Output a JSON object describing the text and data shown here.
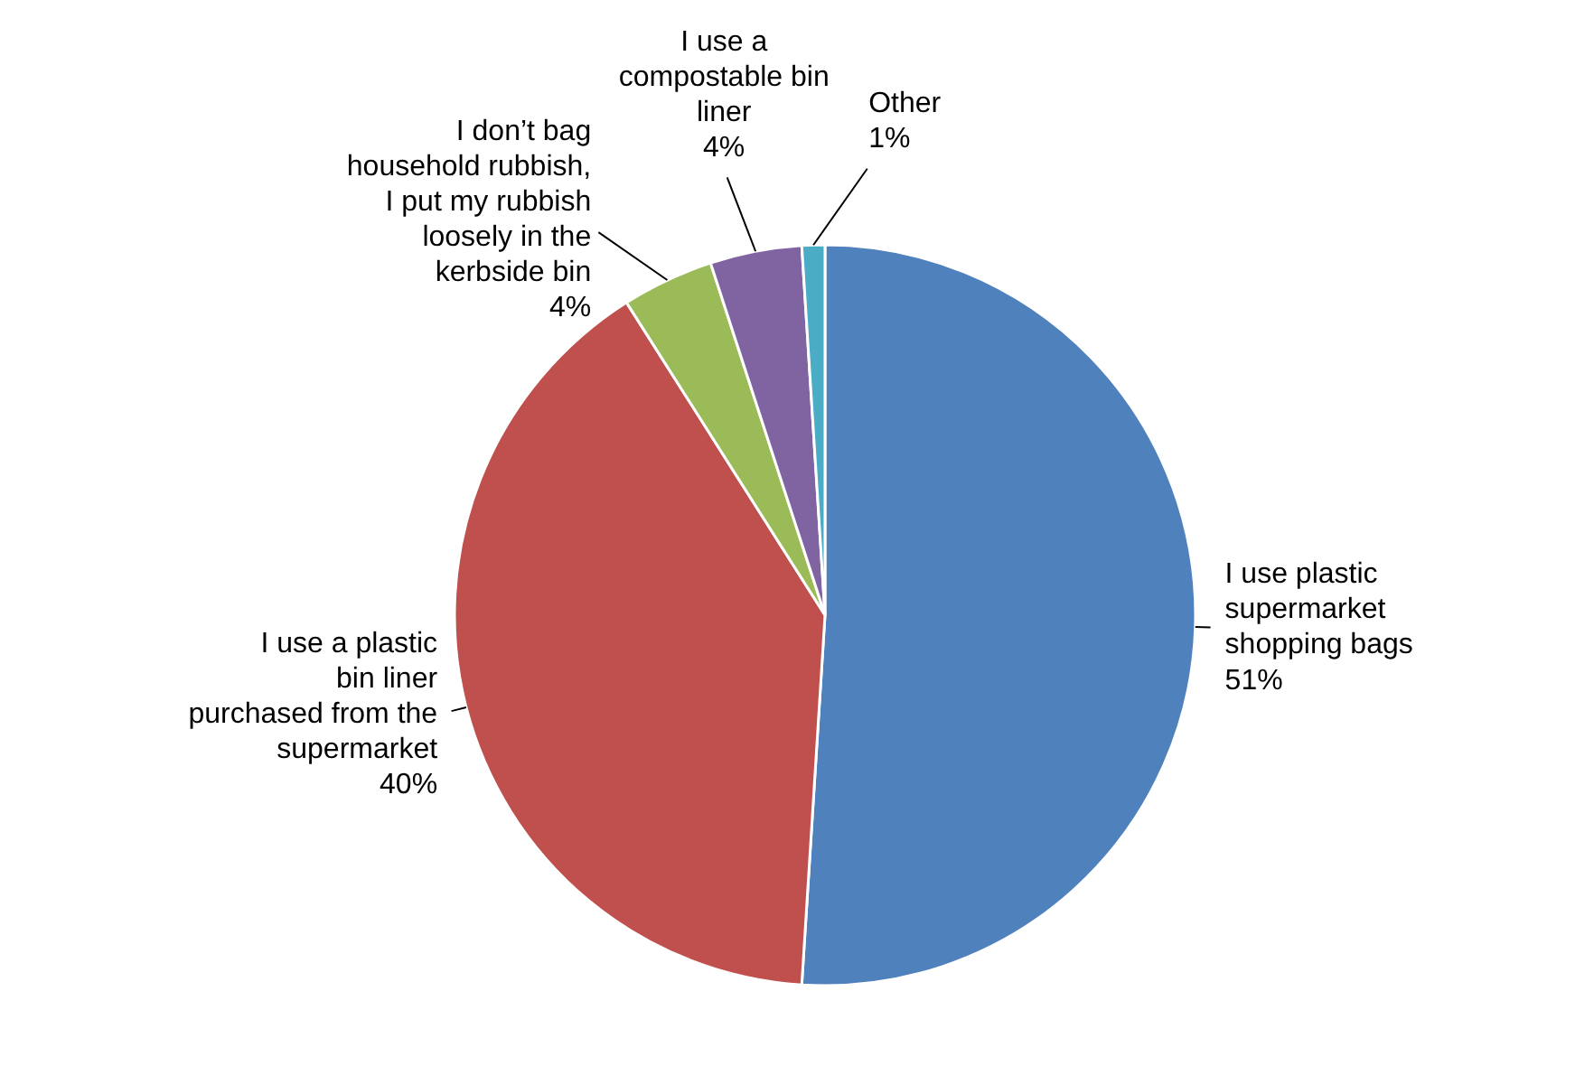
{
  "chart_data": {
    "type": "pie",
    "categories": [
      "I use plastic supermarket shopping bags",
      "I use a plastic bin liner purchased from the supermarket",
      "I don’t bag household rubbish, I put my rubbish loosely in the kerbside bin",
      "I use a compostable bin liner",
      "Other"
    ],
    "values": [
      51,
      40,
      4,
      4,
      1
    ],
    "value_labels": [
      "51%",
      "40%",
      "4%",
      "4%",
      "1%"
    ],
    "colors": [
      "#4f81bd",
      "#c0504d",
      "#9bbb59",
      "#8064a2",
      "#4bacc6"
    ]
  }
}
